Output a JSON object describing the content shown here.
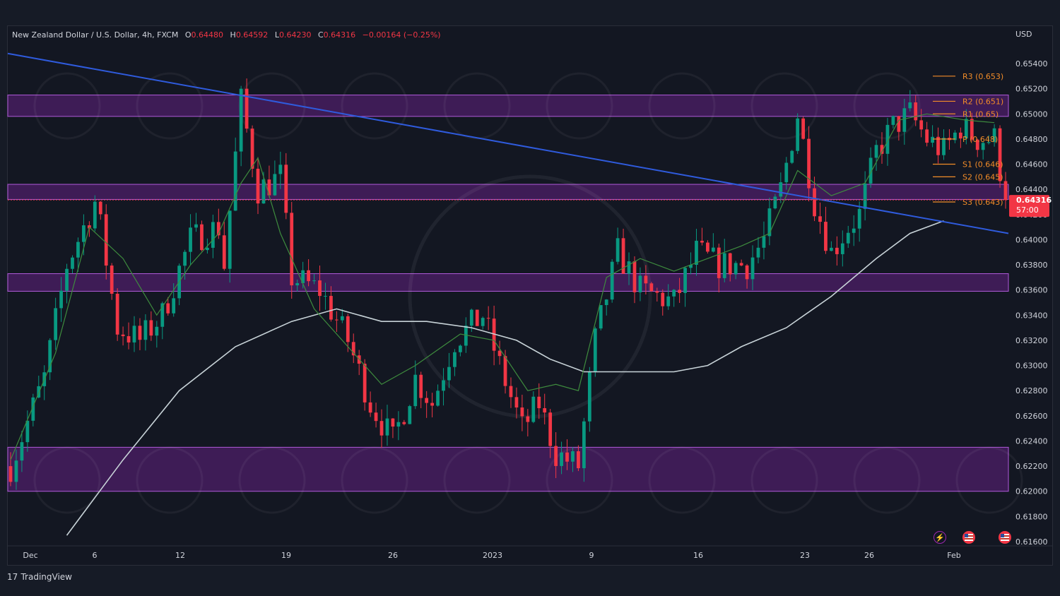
{
  "legend": {
    "symbol": "New Zealand Dollar / U.S. Dollar, 4h, FXCM",
    "open_key": "O",
    "open": "0.64480",
    "high_key": "H",
    "high": "0.64592",
    "low_key": "L",
    "low": "0.64230",
    "close_key": "C",
    "close": "0.64316",
    "change": "−0.00164 (−0.25%)"
  },
  "currency": "USD",
  "price_tag": {
    "price": "0.64316",
    "countdown": "57:00"
  },
  "branding": {
    "logo_glyph": "17",
    "name": "TradingView"
  },
  "colors": {
    "background": "#131722",
    "candle_up": "#089981",
    "candle_down": "#f23645",
    "zone_fill": "#5b1f7a",
    "zone_border": "#b05ad9",
    "trendline": "#2f5bdd",
    "ma_fast": "#3e8c3e",
    "ma_slow": "#c8d3d8",
    "pivot": "#f28c28"
  },
  "icons": [
    "lightning-icon",
    "us-flag-icon",
    "us-flag-icon"
  ],
  "chart_data": {
    "type": "candlestick",
    "title": "",
    "xlabel": "",
    "ylabel": "",
    "ylim": [
      0.6155,
      0.6562
    ],
    "y_ticks": [
      "0.65400",
      "0.65200",
      "0.65000",
      "0.64800",
      "0.64600",
      "0.64400",
      "0.64200",
      "0.64000",
      "0.63800",
      "0.63600",
      "0.63400",
      "0.63200",
      "0.63000",
      "0.62800",
      "0.62600",
      "0.62400",
      "0.62200",
      "0.62000",
      "0.61800",
      "0.61600"
    ],
    "x_ticks": [
      "Dec",
      "6",
      "12",
      "19",
      "26",
      "2023",
      "9",
      "16",
      "23",
      "26",
      "Feb"
    ],
    "grid": false,
    "price_path": [
      [
        0,
        0.622
      ],
      [
        6,
        0.629
      ],
      [
        10,
        0.638
      ],
      [
        15,
        0.643
      ],
      [
        16,
        0.641
      ],
      [
        19,
        0.633
      ],
      [
        23,
        0.632
      ],
      [
        27,
        0.634
      ],
      [
        32,
        0.64
      ],
      [
        37,
        0.641
      ],
      [
        38,
        0.638
      ],
      [
        41,
        0.651
      ],
      [
        44,
        0.644
      ],
      [
        48,
        0.645
      ],
      [
        50,
        0.637
      ],
      [
        55,
        0.636
      ],
      [
        60,
        0.632
      ],
      [
        64,
        0.627
      ],
      [
        68,
        0.624
      ],
      [
        72,
        0.629
      ],
      [
        75,
        0.627
      ],
      [
        79,
        0.632
      ],
      [
        84,
        0.634
      ],
      [
        87,
        0.63
      ],
      [
        91,
        0.625
      ],
      [
        94,
        0.627
      ],
      [
        97,
        0.623
      ],
      [
        101,
        0.622
      ],
      [
        104,
        0.632
      ],
      [
        108,
        0.639
      ],
      [
        112,
        0.636
      ],
      [
        118,
        0.635
      ],
      [
        122,
        0.639
      ],
      [
        126,
        0.638
      ],
      [
        131,
        0.638
      ],
      [
        134,
        0.64
      ],
      [
        137,
        0.644
      ],
      [
        140,
        0.65
      ],
      [
        143,
        0.643
      ],
      [
        146,
        0.639
      ],
      [
        149,
        0.641
      ],
      [
        151,
        0.642
      ],
      [
        154,
        0.647
      ],
      [
        157,
        0.649
      ],
      [
        160,
        0.65
      ],
      [
        163,
        0.648
      ],
      [
        166,
        0.647
      ],
      [
        169,
        0.649
      ],
      [
        172,
        0.648
      ],
      [
        175,
        0.648
      ],
      [
        177,
        0.6432
      ]
    ],
    "ma_fast": [
      [
        0,
        0.6225
      ],
      [
        8,
        0.631
      ],
      [
        14,
        0.641
      ],
      [
        20,
        0.6385
      ],
      [
        26,
        0.634
      ],
      [
        32,
        0.638
      ],
      [
        37,
        0.6405
      ],
      [
        41,
        0.6445
      ],
      [
        44,
        0.6465
      ],
      [
        48,
        0.6405
      ],
      [
        54,
        0.6345
      ],
      [
        60,
        0.6315
      ],
      [
        66,
        0.6285
      ],
      [
        72,
        0.63
      ],
      [
        80,
        0.6325
      ],
      [
        86,
        0.632
      ],
      [
        92,
        0.628
      ],
      [
        97,
        0.6285
      ],
      [
        101,
        0.628
      ],
      [
        106,
        0.637
      ],
      [
        112,
        0.6385
      ],
      [
        118,
        0.6375
      ],
      [
        124,
        0.6385
      ],
      [
        130,
        0.6395
      ],
      [
        135,
        0.6405
      ],
      [
        140,
        0.6455
      ],
      [
        146,
        0.6435
      ],
      [
        152,
        0.6445
      ],
      [
        158,
        0.6495
      ],
      [
        163,
        0.65
      ],
      [
        170,
        0.6495
      ],
      [
        175,
        0.6493
      ]
    ],
    "ma_slow": [
      [
        10,
        0.6165
      ],
      [
        20,
        0.6225
      ],
      [
        30,
        0.628
      ],
      [
        40,
        0.6315
      ],
      [
        50,
        0.6335
      ],
      [
        58,
        0.6345
      ],
      [
        66,
        0.6335
      ],
      [
        74,
        0.6335
      ],
      [
        82,
        0.633
      ],
      [
        90,
        0.632
      ],
      [
        96,
        0.6305
      ],
      [
        102,
        0.6295
      ],
      [
        110,
        0.6295
      ],
      [
        118,
        0.6295
      ],
      [
        124,
        0.63
      ],
      [
        130,
        0.6315
      ],
      [
        138,
        0.633
      ],
      [
        146,
        0.6355
      ],
      [
        154,
        0.6385
      ],
      [
        160,
        0.6405
      ],
      [
        166,
        0.6415
      ]
    ],
    "trendline": [
      [
        0,
        0.6548
      ],
      [
        177,
        0.6405
      ]
    ],
    "zones": [
      {
        "top": 0.6515,
        "bottom": 0.6498
      },
      {
        "top": 0.6444,
        "bottom": 0.6432
      },
      {
        "top": 0.6373,
        "bottom": 0.6359
      },
      {
        "top": 0.6235,
        "bottom": 0.62
      }
    ],
    "pivots": [
      {
        "label": "R3 (0.653)",
        "value": 0.653
      },
      {
        "label": "R2 (0.651)",
        "value": 0.651
      },
      {
        "label": "R1 (0.65)",
        "value": 0.65
      },
      {
        "label": "P (0.648)",
        "value": 0.648
      },
      {
        "label": "S1 (0.646)",
        "value": 0.646
      },
      {
        "label": "S2 (0.645)",
        "value": 0.645
      },
      {
        "label": "S3 (0.643)",
        "value": 0.643
      }
    ],
    "last_price": 0.64316
  }
}
